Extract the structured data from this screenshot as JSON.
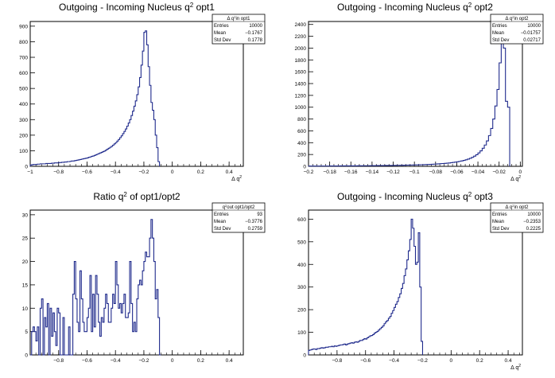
{
  "canvas": {
    "background": "#ffffff",
    "line_color": "#1f2a8c"
  },
  "chart_data": [
    {
      "type": "histogram",
      "title": "Outgoing - Incoming Nucleus q² opt1",
      "xlabel": "Δ q²",
      "ylabel": "",
      "xlim": [
        -1,
        0.5
      ],
      "ylim": [
        0,
        930
      ],
      "xticks": [
        -1,
        -0.8,
        -0.6,
        -0.4,
        -0.2,
        0,
        0.2,
        0.4
      ],
      "xticklabels": [
        "−1",
        "−0.8",
        "−0.6",
        "−0.4",
        "−0.2",
        "0",
        "0.2",
        "0.4"
      ],
      "yticks": [
        0,
        100,
        200,
        300,
        400,
        500,
        600,
        700,
        800,
        900
      ],
      "bin_width": 0.01,
      "x_start": -1,
      "values": [
        8,
        10,
        12,
        12,
        12,
        14,
        14,
        16,
        16,
        16,
        16,
        18,
        18,
        18,
        18,
        20,
        20,
        22,
        22,
        22,
        24,
        24,
        26,
        26,
        28,
        28,
        30,
        30,
        32,
        34,
        34,
        36,
        38,
        40,
        42,
        44,
        46,
        48,
        50,
        52,
        54,
        58,
        60,
        64,
        66,
        70,
        74,
        78,
        82,
        86,
        90,
        94,
        98,
        104,
        110,
        116,
        122,
        128,
        136,
        144,
        152,
        162,
        172,
        184,
        196,
        210,
        224,
        240,
        258,
        278,
        300,
        326,
        354,
        386,
        420,
        460,
        510,
        570,
        650,
        740,
        860,
        870,
        780,
        640,
        520,
        410,
        360,
        300,
        200,
        120,
        30
      ],
      "stats_box": {
        "title": "Δ q²in opt1",
        "rows": [
          [
            "Entries",
            "10000"
          ],
          [
            "Mean",
            "−0.1767"
          ],
          [
            "Std Dev",
            "0.1778"
          ]
        ]
      }
    },
    {
      "type": "histogram",
      "title": "Outgoing - Incoming Nucleus q² opt2",
      "xlabel": "Δ q²",
      "ylabel": "",
      "xlim": [
        -0.2,
        0.002
      ],
      "ylim": [
        0,
        2450
      ],
      "xticks": [
        -0.2,
        -0.18,
        -0.16,
        -0.14,
        -0.12,
        -0.1,
        -0.08,
        -0.06,
        -0.04,
        -0.02,
        0
      ],
      "xticklabels": [
        "−0.2",
        "−0.18",
        "−0.16",
        "−0.14",
        "−0.12",
        "−0.1",
        "−0.08",
        "−0.06",
        "−0.04",
        "−0.02",
        "0"
      ],
      "yticks": [
        0,
        200,
        400,
        600,
        800,
        1000,
        1200,
        1400,
        1600,
        1800,
        2000,
        2200,
        2400
      ],
      "yticklabels": [
        "0",
        "200",
        "400",
        "600",
        "800",
        "1000",
        "1200",
        "1400",
        "1600",
        "1800",
        "2000",
        "2200",
        "2400"
      ],
      "bin_width": 0.002,
      "x_start": -0.2,
      "values": [
        4,
        4,
        4,
        4,
        4,
        5,
        5,
        5,
        5,
        5,
        6,
        6,
        6,
        6,
        6,
        7,
        7,
        7,
        7,
        8,
        8,
        8,
        8,
        9,
        9,
        9,
        10,
        10,
        10,
        11,
        11,
        11,
        12,
        12,
        13,
        13,
        14,
        14,
        15,
        15,
        16,
        16,
        17,
        18,
        18,
        19,
        20,
        21,
        22,
        23,
        24,
        25,
        26,
        27,
        28,
        30,
        31,
        33,
        35,
        37,
        39,
        41,
        44,
        47,
        50,
        53,
        57,
        61,
        66,
        71,
        77,
        84,
        92,
        100,
        110,
        122,
        136,
        152,
        172,
        196,
        226,
        262,
        306,
        360,
        430,
        520,
        640,
        800,
        1020,
        1300,
        1750,
        2400,
        2000,
        1100,
        1000
      ],
      "stats_box": {
        "title": "Δ q²in opt2",
        "rows": [
          [
            "Entries",
            "10000"
          ],
          [
            "Mean",
            "−0.01757"
          ],
          [
            "Std Dev",
            "0.02717"
          ]
        ]
      }
    },
    {
      "type": "histogram",
      "title": "Ratio q² of opt1/opt2",
      "xlabel": "",
      "ylabel": "",
      "xlim": [
        -1,
        0.5
      ],
      "ylim": [
        0,
        31
      ],
      "xticks": [
        -0.8,
        -0.6,
        -0.4,
        -0.2,
        0,
        0.2,
        0.4
      ],
      "xticklabels": [
        "−0.8",
        "−0.6",
        "−0.4",
        "−0.2",
        "0",
        "0.2",
        "0.4"
      ],
      "yticks": [
        0,
        5,
        10,
        15,
        20,
        25,
        30
      ],
      "bin_width": 0.01,
      "x_start": -1,
      "values": [
        0,
        5,
        6,
        5,
        3,
        6,
        0,
        10,
        12,
        0,
        8,
        6,
        11,
        0,
        10,
        4,
        9,
        5,
        2,
        10,
        9,
        0,
        0,
        8,
        0,
        0,
        0,
        6,
        0,
        0,
        13,
        20,
        12,
        7,
        5,
        18,
        12,
        7,
        5,
        5,
        8,
        10,
        17,
        5,
        13,
        6,
        17,
        13,
        7,
        4,
        8,
        7,
        10,
        13,
        11,
        7,
        7,
        10,
        13,
        11,
        20,
        15,
        10,
        11,
        9,
        11,
        13,
        8,
        8,
        9,
        20,
        11,
        5,
        7,
        5,
        12,
        15,
        16,
        15,
        18,
        20,
        22,
        21,
        21,
        25,
        29,
        25,
        20,
        12,
        14,
        8,
        0
      ],
      "stats_box": {
        "title": "q²out opt1/opt2",
        "rows": [
          [
            "Entries",
            "93"
          ],
          [
            "Mean",
            "−0.3776"
          ],
          [
            "Std Dev",
            "0.2759"
          ]
        ]
      }
    },
    {
      "type": "histogram",
      "title": "Outgoing - Incoming Nucleus q² opt3",
      "xlabel": "Δ q²",
      "ylabel": "",
      "xlim": [
        -1,
        0.5
      ],
      "ylim": [
        0,
        640
      ],
      "xticks": [
        -0.8,
        -0.6,
        -0.4,
        -0.2,
        0,
        0.2,
        0.4
      ],
      "xticklabels": [
        "−0.8",
        "−0.6",
        "−0.4",
        "−0.2",
        "0",
        "0.2",
        "0.4"
      ],
      "yticks": [
        0,
        100,
        200,
        300,
        400,
        500,
        600
      ],
      "bin_width": 0.01,
      "x_start": -1,
      "values": [
        20,
        22,
        24,
        26,
        26,
        24,
        28,
        28,
        30,
        32,
        30,
        32,
        34,
        34,
        36,
        36,
        38,
        36,
        40,
        38,
        40,
        42,
        44,
        44,
        46,
        48,
        44,
        48,
        50,
        52,
        54,
        52,
        56,
        58,
        56,
        60,
        64,
        64,
        68,
        72,
        70,
        76,
        80,
        84,
        86,
        90,
        96,
        100,
        104,
        110,
        116,
        122,
        128,
        138,
        146,
        152,
        162,
        170,
        184,
        196,
        210,
        224,
        236,
        254,
        270,
        294,
        316,
        350,
        380,
        420,
        460,
        510,
        600,
        560,
        480,
        400,
        410,
        540,
        300,
        60
      ],
      "stats_box": {
        "title": "Δ q²in opt2",
        "rows": [
          [
            "Entries",
            "10000"
          ],
          [
            "Mean",
            "−0.2353"
          ],
          [
            "Std Dev",
            "0.2225"
          ]
        ]
      }
    }
  ]
}
